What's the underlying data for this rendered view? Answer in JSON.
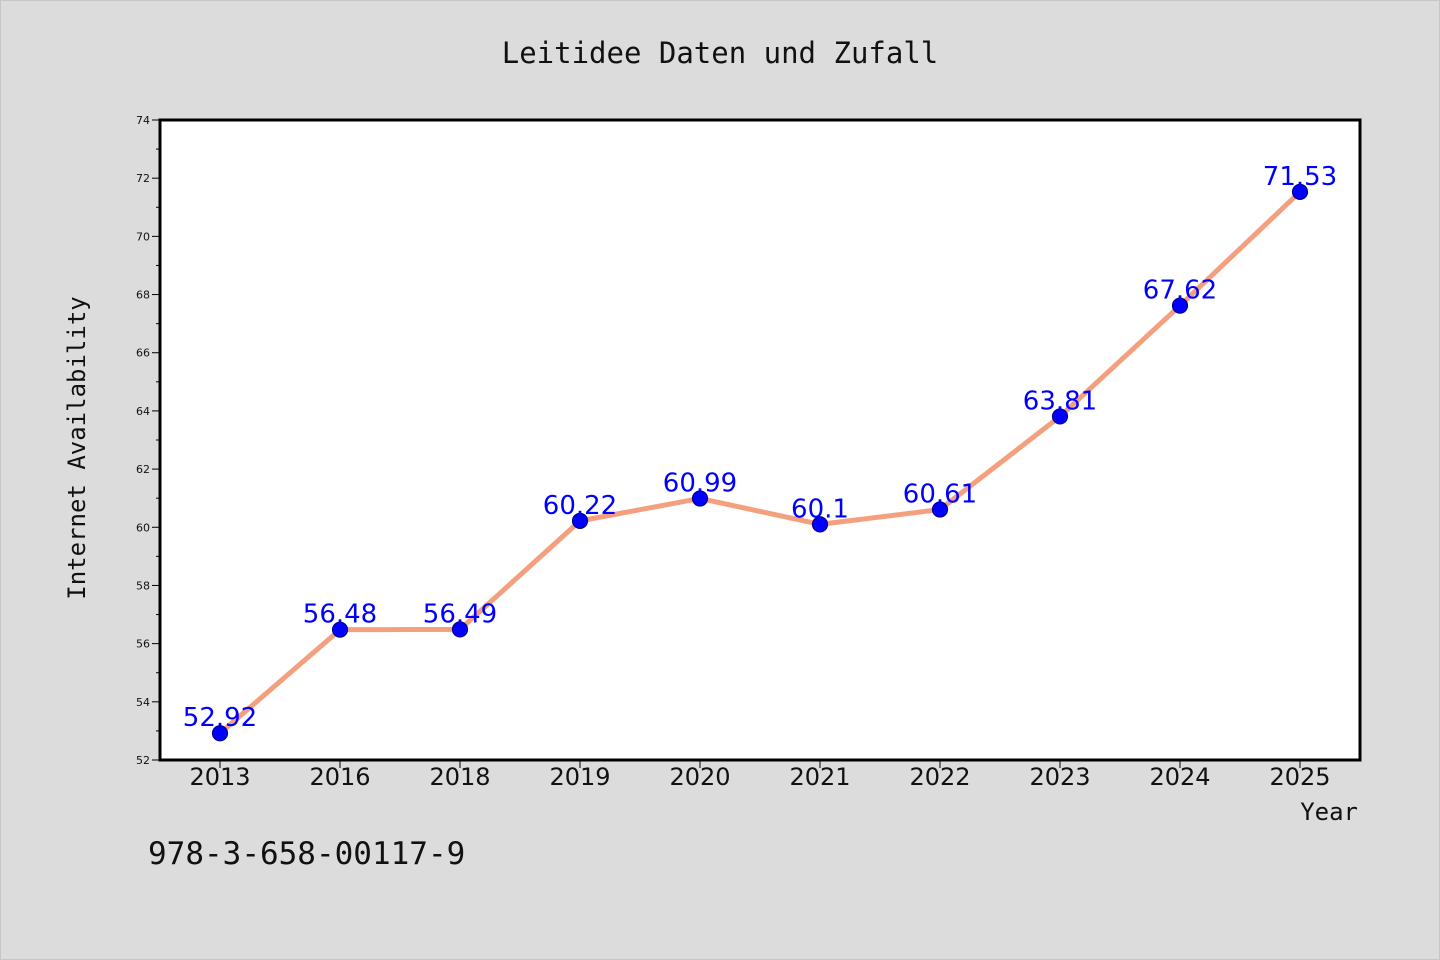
{
  "chart_data": {
    "type": "line",
    "title": "Leitidee Daten und Zufall",
    "xlabel": "Year",
    "ylabel": "Internet Availability",
    "categories": [
      "2013",
      "2016",
      "2018",
      "2019",
      "2020",
      "2021",
      "2022",
      "2023",
      "2024",
      "2025"
    ],
    "series": [
      {
        "values": [
          52.92,
          56.48,
          56.49,
          60.22,
          60.99,
          60.1,
          60.61,
          63.81,
          67.62,
          71.53
        ],
        "labels": [
          "52.92",
          "56.48",
          "56.49",
          "60.22",
          "60.99",
          "60.1",
          "60.61",
          "63.81",
          "67.62",
          "71.53"
        ]
      }
    ],
    "ylim": [
      52,
      74
    ],
    "yticks": [
      52,
      54,
      56,
      58,
      60,
      62,
      64,
      66,
      68,
      70,
      72,
      74
    ],
    "grid": false,
    "line_color": "#f4a07f",
    "marker_color": "#0000ff",
    "label_color": "#0000ff",
    "background": "#dcdcdc",
    "plot_background": "#ffffff"
  },
  "footer": {
    "code": "978-3-658-00117-9"
  }
}
